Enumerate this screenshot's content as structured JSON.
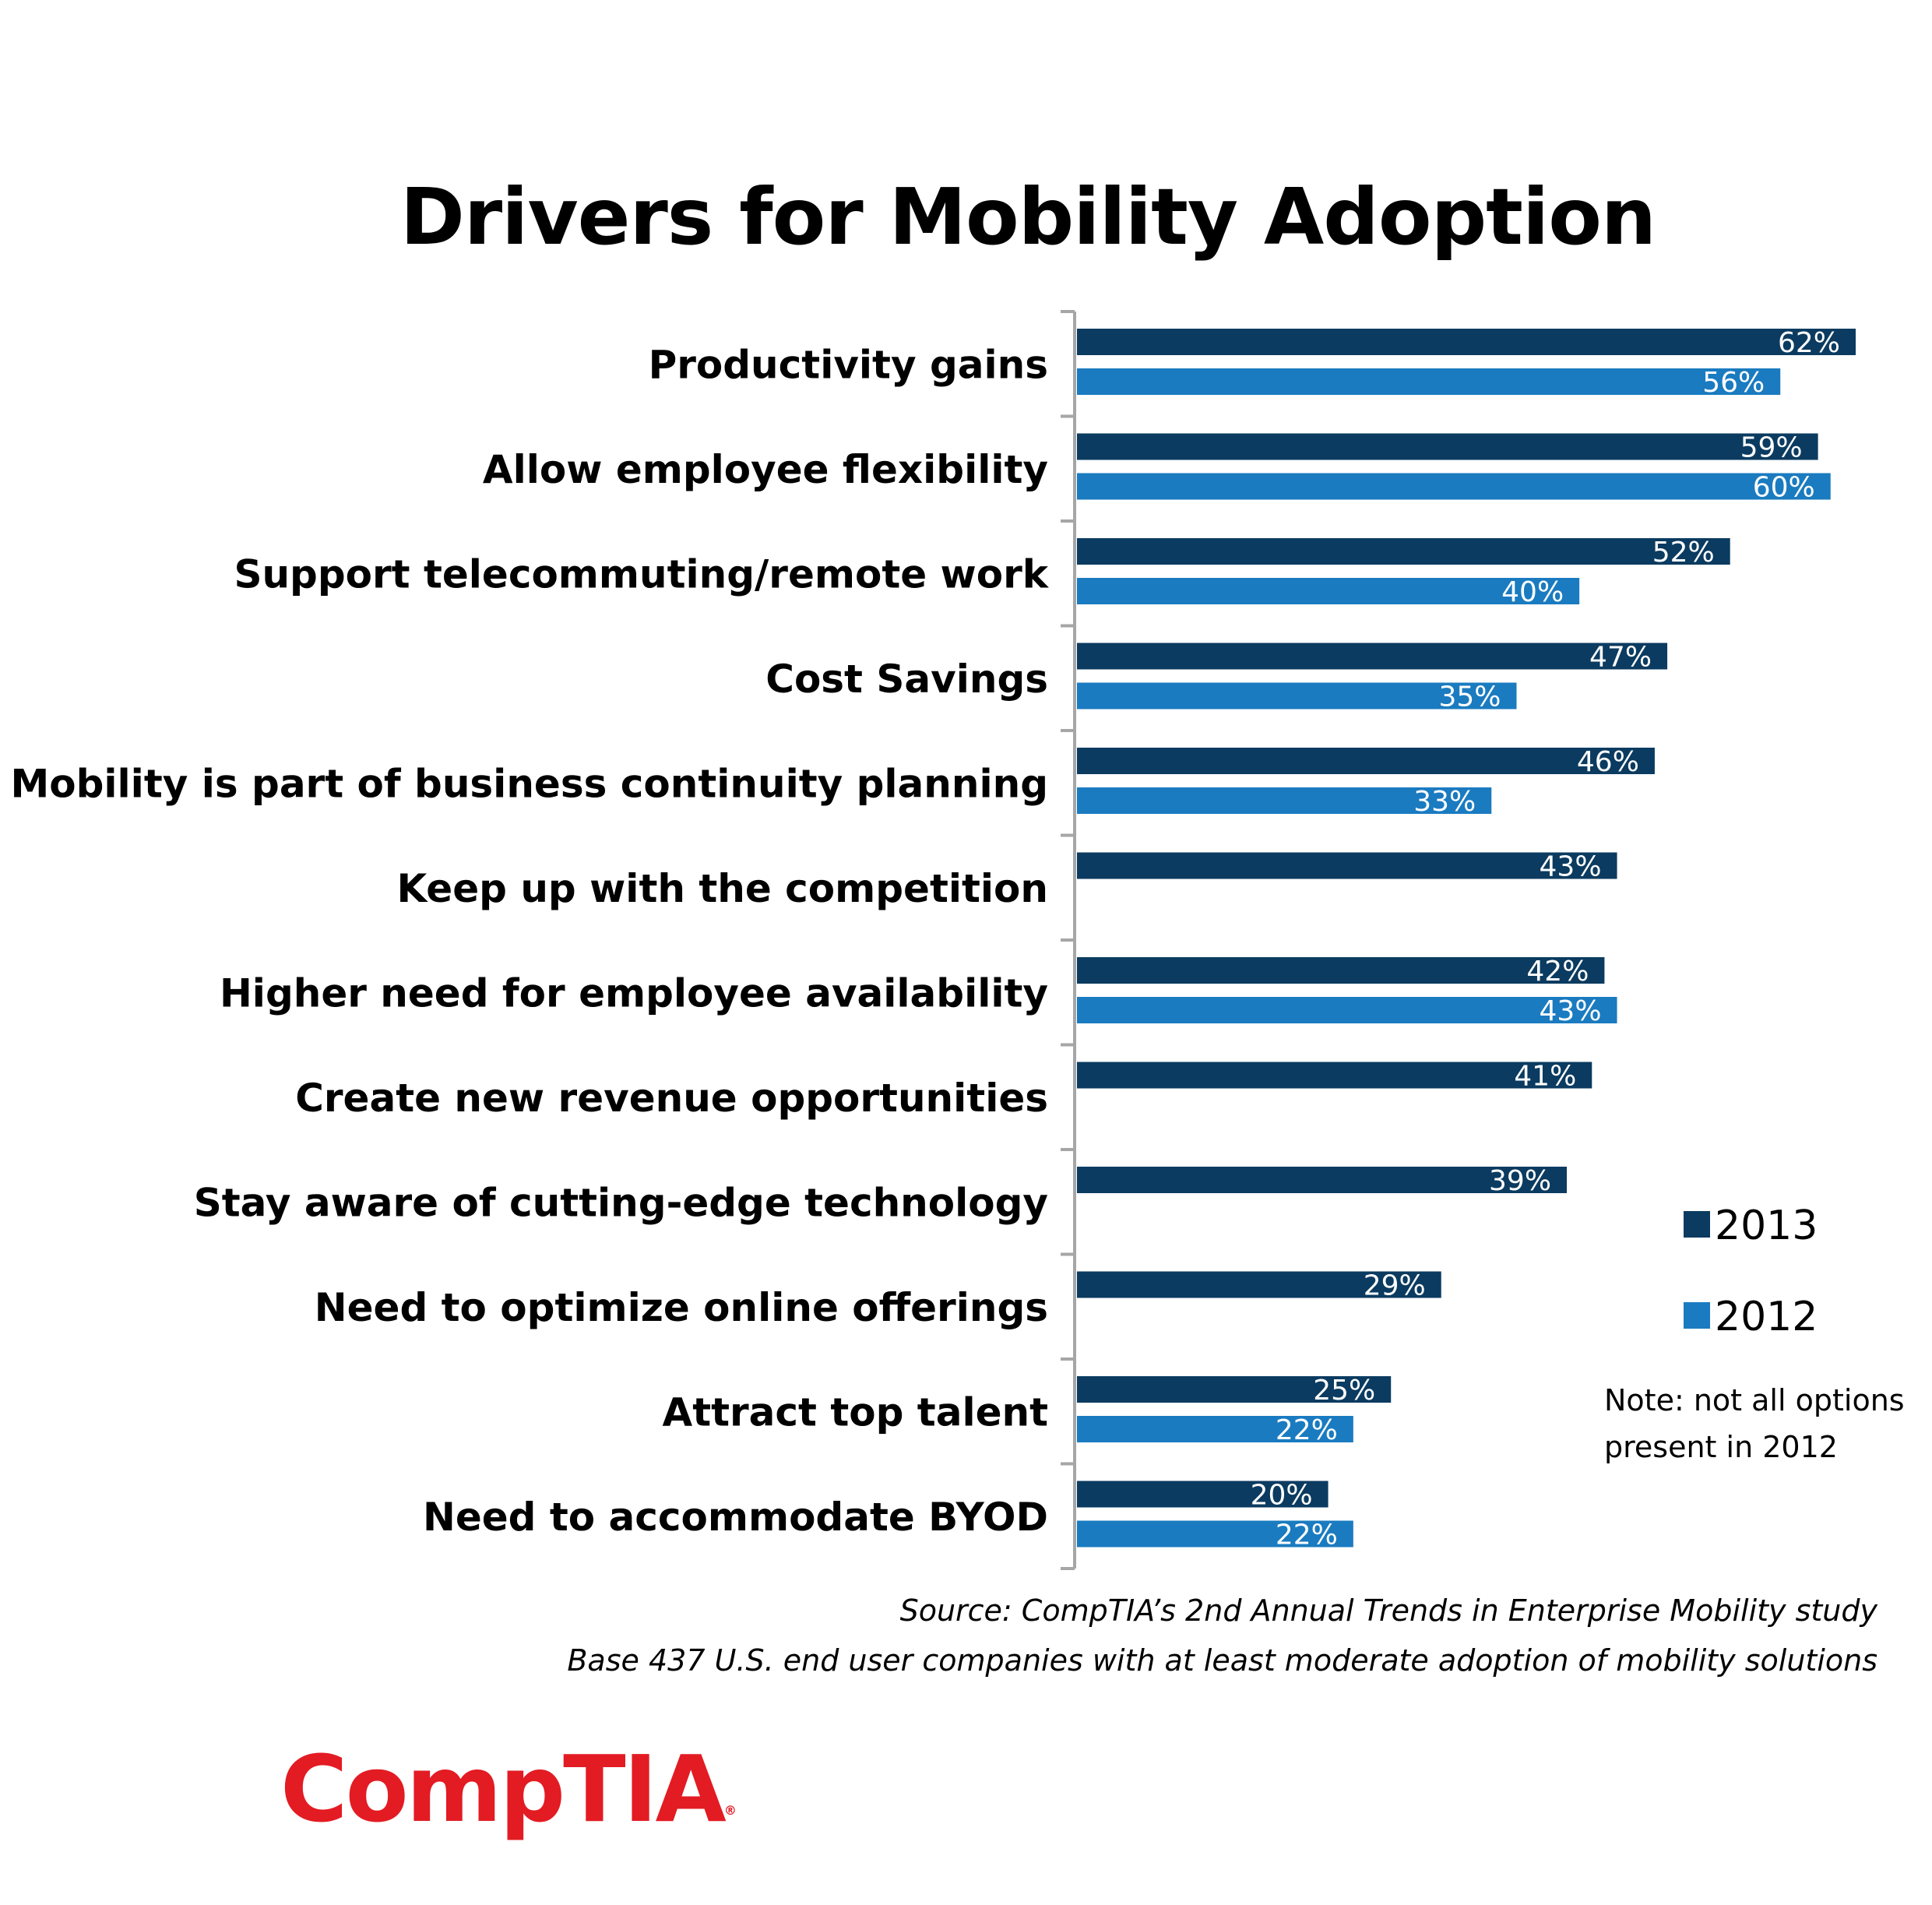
{
  "title": "Drivers for Mobility Adoption",
  "chart_data": {
    "type": "bar",
    "orientation": "horizontal",
    "title": "Drivers for Mobility Adoption",
    "categories": [
      "Productivity gains",
      "Allow employee flexibility",
      "Support telecommuting/remote work",
      "Cost Savings",
      "Mobility is part of business continuity planning",
      "Keep up with the competition",
      "Higher need for employee availability",
      "Create new revenue opportunities",
      "Stay aware of cutting-edge technology",
      "Need to optimize online offerings",
      "Attract top talent",
      "Need to accommodate BYOD"
    ],
    "series": [
      {
        "name": "2013",
        "color": "#0b3b60",
        "values": [
          62,
          59,
          52,
          47,
          46,
          43,
          42,
          41,
          39,
          29,
          25,
          20
        ],
        "labels": [
          "62%",
          "59%",
          "52%",
          "47%",
          "46%",
          "43%",
          "42%",
          "41%",
          "39%",
          "29%",
          "25%",
          "20%"
        ]
      },
      {
        "name": "2012",
        "color": "#1a7bc0",
        "values": [
          56,
          60,
          40,
          35,
          33,
          null,
          43,
          null,
          null,
          null,
          22,
          22
        ],
        "labels": [
          "56%",
          "60%",
          "40%",
          "35%",
          "33%",
          null,
          "43%",
          null,
          null,
          null,
          "22%",
          "22%"
        ]
      }
    ],
    "xlim": [
      0,
      62
    ],
    "xlabel": "",
    "ylabel": "",
    "grid": false,
    "legend": "right"
  },
  "note": {
    "line1": "Note: not all options",
    "line2": "present in 2012"
  },
  "source": {
    "line1": "Source: CompTIA’s 2nd Annual Trends in Enterprise Mobility study",
    "line2": "Base 437 U.S. end user companies with at least moderate adoption of mobility solutions"
  },
  "logo": {
    "text": "CompTIA",
    "reg": "®",
    "color": "#e31b23"
  }
}
